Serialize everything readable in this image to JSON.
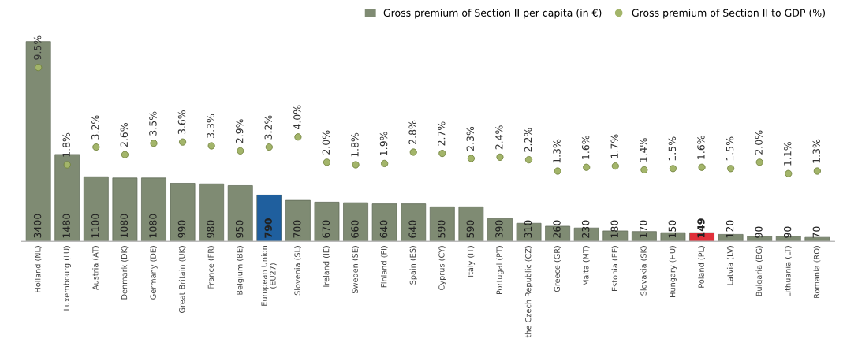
{
  "chart_data": {
    "type": "bar",
    "categories": [
      "Holland (NL)",
      "Luxembourg (LU)",
      "Austria (AT)",
      "Denmark (DK)",
      "Germany (DE)",
      "Great Britain (UK)",
      "France (FR)",
      "Belgium (BE)",
      "European Union\n(EU27)",
      "Slovenia (SL)",
      "Ireland (IE)",
      "Sweden (SE)",
      "Finland (FI)",
      "Spain (ES)",
      "Cyprus (CY)",
      "Italy (IT)",
      "Portugal (PT)",
      "the Czech Republic (CZ)",
      "Greece (GR)",
      "Malta (MT)",
      "Estonia (EE)",
      "Slovakia (SK)",
      "Hungary (HU)",
      "Poland (PL)",
      "Latvia (LV)",
      "Bulgaria (BG)",
      "Lithuania (LT)",
      "Romania (RO)"
    ],
    "series": [
      {
        "name": "Gross premium of Section II per capita (in €)",
        "type": "bar",
        "color": "#7f8b73",
        "colors": [
          "#7f8b73",
          "#7f8b73",
          "#7f8b73",
          "#7f8b73",
          "#7f8b73",
          "#7f8b73",
          "#7f8b73",
          "#7f8b73",
          "#1f5f9e",
          "#7f8b73",
          "#7f8b73",
          "#7f8b73",
          "#7f8b73",
          "#7f8b73",
          "#7f8b73",
          "#7f8b73",
          "#7f8b73",
          "#7f8b73",
          "#7f8b73",
          "#7f8b73",
          "#7f8b73",
          "#7f8b73",
          "#7f8b73",
          "#e0303a",
          "#7f8b73",
          "#7f8b73",
          "#7f8b73",
          "#7f8b73"
        ],
        "values": [
          3400,
          1480,
          1100,
          1080,
          1080,
          990,
          980,
          950,
          790,
          700,
          670,
          660,
          640,
          640,
          590,
          590,
          390,
          310,
          260,
          230,
          180,
          170,
          150,
          149,
          120,
          90,
          90,
          70
        ]
      },
      {
        "name": "Gross premium of Section II to GDP (%)",
        "type": "scatter",
        "axis": "y2",
        "color": "#a3b56a",
        "values": [
          9.5,
          1.8,
          3.2,
          2.6,
          3.5,
          3.6,
          3.3,
          2.9,
          3.2,
          4.0,
          2.0,
          1.8,
          1.9,
          2.8,
          2.7,
          2.3,
          2.4,
          2.2,
          1.3,
          1.6,
          1.7,
          1.4,
          1.5,
          1.6,
          1.5,
          2.0,
          1.1,
          1.3
        ],
        "value_labels": [
          "9.5%",
          "1.8%",
          "3.2%",
          "2.6%",
          "3.5%",
          "3.6%",
          "3.3%",
          "2.9%",
          "3.2%",
          "4.0%",
          "2.0%",
          "1.8%",
          "1.9%",
          "2.8%",
          "2.7%",
          "2.3%",
          "2.4%",
          "2.2%",
          "1.3%",
          "1.6%",
          "1.7%",
          "1.4%",
          "1.5%",
          "1.6%",
          "1.5%",
          "2.0%",
          "1.1%",
          "1.3%"
        ]
      }
    ],
    "data_labels": true,
    "legend": "top right",
    "marker": "circle",
    "grid": false
  }
}
